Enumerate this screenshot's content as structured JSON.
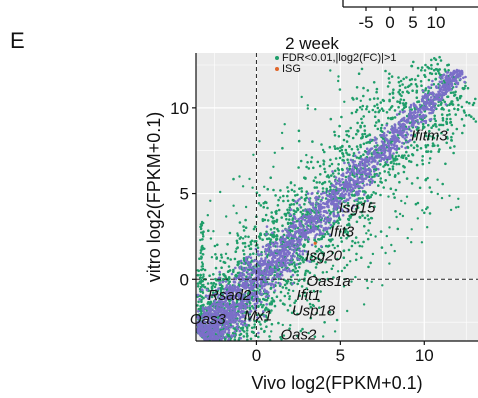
{
  "panel_letter": "E",
  "inset": {
    "ticks": [
      "-5",
      "0",
      "5",
      "10"
    ]
  },
  "chart_data": {
    "type": "scatter",
    "title": "2 week",
    "xlabel": "Vivo log2(FPKM+0.1)",
    "ylabel": "vitro log2(FPKM+0.1)",
    "xlim": [
      -3.6,
      13.2
    ],
    "ylim": [
      -3.6,
      13.2
    ],
    "xticks": [
      0,
      5,
      10
    ],
    "yticks": [
      0,
      5,
      10
    ],
    "grid": true,
    "legend_position": "top-left",
    "cutoff_lines": {
      "vertical_x": 0,
      "horizontal_y": 0
    },
    "legend": [
      {
        "label": "FDR<0.01,|log2(FC)|>1",
        "color": "#1f9e6a"
      },
      {
        "label": "ISG",
        "color": "#e0662a"
      }
    ],
    "series": [
      {
        "name": "FDR<0.01,|log2(FC)|>1",
        "color": "#1f9e6a"
      },
      {
        "name": "ISG",
        "color": "#e0662a"
      },
      {
        "color": "#7b6fc8"
      }
    ],
    "genes": [
      {
        "label": "Ifitm3",
        "x": 10.3,
        "y": 8.1
      },
      {
        "label": "Isg15",
        "x": 6.0,
        "y": 3.9
      },
      {
        "label": "Ifit3",
        "x": 5.1,
        "y": 2.5
      },
      {
        "label": "Isg20",
        "x": 4.0,
        "y": 1.1
      },
      {
        "label": "Oas1a",
        "x": 4.3,
        "y": -0.4
      },
      {
        "label": "Rsad2",
        "x": -1.6,
        "y": -1.2
      },
      {
        "label": "Ifit1",
        "x": 3.1,
        "y": -1.2
      },
      {
        "label": "Mx1",
        "x": 0.1,
        "y": -2.4
      },
      {
        "label": "Usp18",
        "x": 3.4,
        "y": -2.1
      },
      {
        "label": "Oas3",
        "x": -2.9,
        "y": -2.6
      },
      {
        "label": "Oas2",
        "x": 2.5,
        "y": -3.5
      }
    ]
  },
  "colors": {
    "panel_bg": "#ebebeb",
    "grid": "#ffffff",
    "sig": "#1f9e6a",
    "isg": "#e0662a",
    "nonsig": "#7b6fc8"
  }
}
